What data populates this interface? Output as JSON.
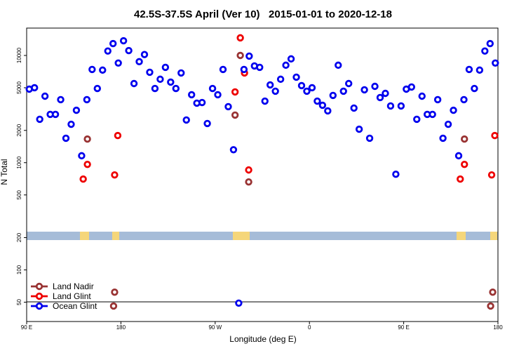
{
  "chart_data": {
    "type": "scatter",
    "title": "42.5S-37.5S April (Ver 10)   2015-01-01 to 2020-12-18",
    "x_label": "Longitude (deg E)",
    "y_label": "N Total",
    "log_y": true,
    "legend": "bottom left",
    "xlim": [
      90,
      540
    ],
    "xticks": [
      {
        "value": 90,
        "label": "90 E"
      },
      180,
      {
        "value": 270,
        "label": "90 W"
      },
      {
        "value": 360,
        "label": "0"
      },
      {
        "value": 450,
        "label": "90 E"
      },
      {
        "value": 540,
        "label": "180"
      }
    ],
    "ylim": [
      33,
      18000
    ],
    "yticks": [
      50,
      100,
      200,
      500,
      1000,
      2000,
      5000,
      10000
    ],
    "series": [
      {
        "name": "Land Nadir",
        "color": "#993333",
        "x": [
          148,
          174,
          173,
          289,
          294,
          302,
          508,
          535,
          533
        ],
        "values": [
          1660,
          62,
          46,
          2780,
          10000,
          661,
          1660,
          62,
          46
        ]
      },
      {
        "name": "Land Glint",
        "color": "#ee0000",
        "x": [
          144,
          148,
          174,
          177,
          289,
          294,
          298,
          302,
          504,
          508,
          534,
          537
        ],
        "values": [
          703,
          964,
          769,
          1790,
          4570,
          14600,
          6870,
          855,
          703,
          964,
          769,
          1790
        ]
      },
      {
        "name": "Ocean Glint",
        "color": "#0000ee",
        "x": [
          92.5,
          97.5,
          102.5,
          107.5,
          112.5,
          117.5,
          122.5,
          127.5,
          132.5,
          137.5,
          142.5,
          147.5,
          152.5,
          157.5,
          162.5,
          167.5,
          172.5,
          177.5,
          182.5,
          187.5,
          192.5,
          197.5,
          202.5,
          207.5,
          212.5,
          217.5,
          222.5,
          227.5,
          232.5,
          237.5,
          242.5,
          247.5,
          252.5,
          257.5,
          262.5,
          267.5,
          272.5,
          277.5,
          282.5,
          287.5,
          292.5,
          297.5,
          302.5,
          307.5,
          312.5,
          317.5,
          322.5,
          327.5,
          332.5,
          337.5,
          342.5,
          347.5,
          352.5,
          357.5,
          362.5,
          367.5,
          372.5,
          377.5,
          382.5,
          387.5,
          392.5,
          397.5,
          402.5,
          407.5,
          412.5,
          417.5,
          422.5,
          427.5,
          432.5,
          437.5,
          442.5,
          447.5,
          452.5,
          457.5,
          462.5,
          467.5,
          472.5,
          477.5,
          482.5,
          487.5,
          492.5,
          497.5,
          502.5,
          507.5,
          512.5,
          517.5,
          522.5,
          527.5,
          532.5,
          537.5
        ],
        "values": [
          4850,
          5000,
          2540,
          4170,
          2820,
          2820,
          3870,
          1690,
          2280,
          3080,
          1160,
          3870,
          7400,
          4920,
          7300,
          11000,
          12900,
          8500,
          13700,
          11100,
          5470,
          8750,
          10200,
          6970,
          4920,
          6000,
          7750,
          5640,
          4920,
          6870,
          2500,
          4300,
          3590,
          3640,
          2320,
          4920,
          4300,
          7400,
          3330,
          1320,
          49,
          7400,
          9860,
          7980,
          7750,
          3750,
          5310,
          4640,
          6000,
          8110,
          9290,
          6270,
          5230,
          4640,
          5000,
          3750,
          3430,
          3040,
          4240,
          8110,
          4640,
          5470,
          3230,
          2050,
          4780,
          1690,
          5150,
          4050,
          4430,
          3380,
          780,
          3380,
          4850,
          5080,
          2540,
          4170,
          2820,
          2820,
          3870,
          1690,
          2280,
          3080,
          1160,
          3870,
          7400,
          4920,
          7300,
          11000,
          12900,
          8500
        ]
      }
    ]
  }
}
